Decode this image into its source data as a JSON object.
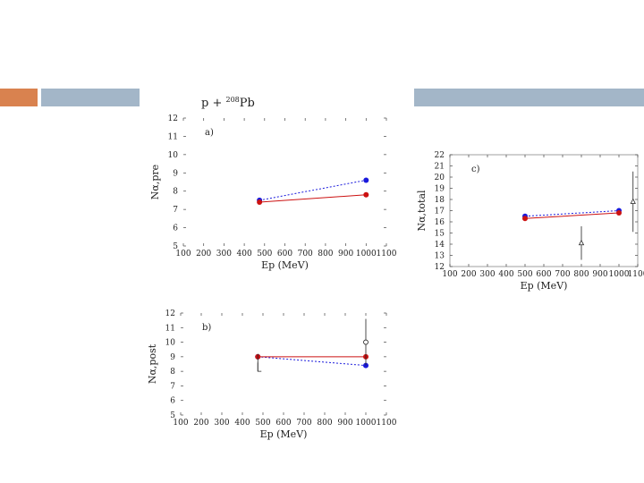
{
  "slide": {
    "accent_colors": {
      "orange": "#d9824f",
      "blue_gray": "#a3b6c8"
    }
  },
  "figure_title": {
    "prefix": "p + ",
    "sup": "208",
    "suffix": "Pb"
  },
  "chart_data": [
    {
      "id": "a",
      "type": "line",
      "panel_label": "a)",
      "xlabel": "Ep (MeV)",
      "ylabel": "Nα,pre",
      "xlim": [
        100,
        1100
      ],
      "ylim": [
        5,
        12
      ],
      "xticks": [
        100,
        200,
        300,
        400,
        500,
        600,
        700,
        800,
        900,
        1000,
        1100
      ],
      "yticks": [
        5,
        6,
        7,
        8,
        9,
        10,
        11,
        12
      ],
      "series": [
        {
          "color": "#1a1adc",
          "dash": "2,2",
          "marker": "circle",
          "x": [
            475,
            1000
          ],
          "y": [
            7.5,
            8.6
          ],
          "yerr": [
            0,
            0
          ]
        },
        {
          "color": "#cc1111",
          "dash": "",
          "marker": "circle",
          "x": [
            475,
            1000
          ],
          "y": [
            7.4,
            7.8
          ],
          "yerr": [
            0,
            0
          ]
        }
      ]
    },
    {
      "id": "b",
      "type": "line",
      "panel_label": "b)",
      "xlabel": "Ep (MeV)",
      "ylabel": "Nα,post",
      "xlim": [
        100,
        1100
      ],
      "ylim": [
        5,
        12
      ],
      "xticks": [
        100,
        200,
        300,
        400,
        500,
        600,
        700,
        800,
        900,
        1000,
        1100
      ],
      "yticks": [
        5,
        6,
        7,
        8,
        9,
        10,
        11,
        12
      ],
      "series": [
        {
          "color": "#1a1adc",
          "dash": "2,2",
          "marker": "circle",
          "x": [
            475,
            1000
          ],
          "y": [
            9.0,
            8.4
          ],
          "yerr": [
            0,
            0
          ]
        },
        {
          "color": "#cc1111",
          "dash": "",
          "marker": "circle",
          "x": [
            475,
            1000
          ],
          "y": [
            9.0,
            9.0
          ],
          "yerr": [
            0,
            0
          ]
        }
      ],
      "extra_points": [
        {
          "x": 1000,
          "y": 10.0,
          "yerr": 1.6,
          "marker": "open-circle"
        },
        {
          "x": 475,
          "y": 8.6,
          "yerr": 0.6,
          "marker": "bracket"
        }
      ]
    },
    {
      "id": "c",
      "type": "line",
      "panel_label": "c)",
      "xlabel": "Ep (MeV)",
      "ylabel": "Nα,total",
      "xlim": [
        100,
        1100
      ],
      "ylim": [
        12,
        22
      ],
      "xticks": [
        100,
        200,
        300,
        400,
        500,
        600,
        700,
        800,
        900,
        1000,
        1100
      ],
      "yticks": [
        12,
        13,
        14,
        15,
        16,
        17,
        18,
        19,
        20,
        21,
        22
      ],
      "series": [
        {
          "color": "#1a1adc",
          "dash": "2,2",
          "marker": "circle",
          "x": [
            500,
            1000
          ],
          "y": [
            16.5,
            17.0
          ],
          "yerr": [
            0,
            0
          ]
        },
        {
          "color": "#cc1111",
          "dash": "",
          "marker": "circle",
          "x": [
            500,
            1000
          ],
          "y": [
            16.3,
            16.8
          ],
          "yerr": [
            0,
            0
          ]
        }
      ],
      "extra_points": [
        {
          "x": 800,
          "y": 14.1,
          "yerr": 1.5,
          "marker": "open-triangle"
        },
        {
          "x": 1075,
          "y": 17.8,
          "yerr": 2.7,
          "marker": "open-triangle"
        }
      ]
    }
  ]
}
